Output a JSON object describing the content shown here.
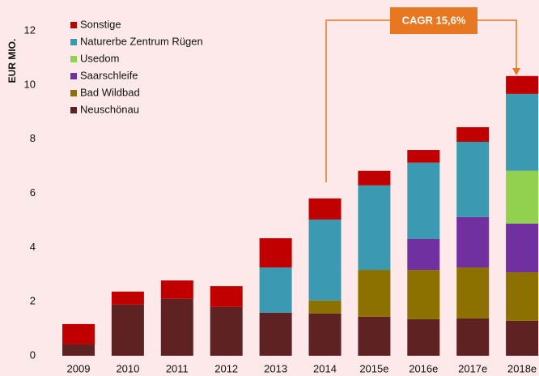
{
  "chart_data": {
    "type": "stacked_bar",
    "y_label": "EUR MIO.",
    "annotation": "CAGR 15,6%",
    "categories": [
      "2009",
      "2010",
      "2011",
      "2012",
      "2013",
      "2014",
      "2015e",
      "2016e",
      "2017e",
      "2018e"
    ],
    "series": [
      {
        "name": "Neuschönau",
        "color": "#5e2222",
        "values": [
          0.42,
          1.89,
          2.1,
          1.8,
          1.59,
          1.56,
          1.44,
          1.35,
          1.38,
          1.29
        ]
      },
      {
        "name": "Bad Wildbad",
        "color": "#8c7000",
        "values": [
          0,
          0,
          0,
          0,
          0,
          0.48,
          1.73,
          1.82,
          1.88,
          1.79
        ]
      },
      {
        "name": "Saarschleife",
        "color": "#7030a0",
        "values": [
          0,
          0,
          0,
          0,
          0,
          0,
          0,
          1.14,
          1.86,
          1.8
        ]
      },
      {
        "name": "Usedom",
        "color": "#92d050",
        "values": [
          0,
          0,
          0,
          0,
          0,
          0,
          0,
          0,
          0,
          1.95
        ]
      },
      {
        "name": "Naturerbe Zentrum Rügen",
        "color": "#3b9ab2",
        "values": [
          0,
          0,
          0,
          0,
          1.67,
          2.99,
          3.12,
          2.82,
          2.78,
          2.84
        ]
      },
      {
        "name": "Sonstige",
        "color": "#c00000",
        "values": [
          0.75,
          0.48,
          0.68,
          0.77,
          1.08,
          0.78,
          0.54,
          0.47,
          0.54,
          0.66
        ]
      }
    ],
    "ylim": [
      0,
      12
    ],
    "yticks": [
      0,
      2,
      4,
      6,
      8,
      10,
      12
    ],
    "grid": false
  }
}
